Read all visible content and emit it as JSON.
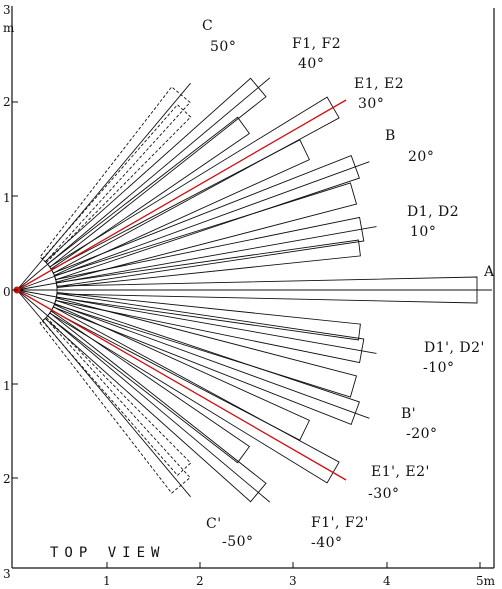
{
  "figure": {
    "title": "TOP VIEW",
    "axis_unit_x": "5m",
    "axis_unit_y": "m",
    "x_ticks": [
      "1",
      "2",
      "3",
      "4"
    ],
    "y_ticks": [
      "3",
      "2",
      "1",
      "0",
      "1",
      "2",
      "3"
    ]
  },
  "beams": [
    {
      "id": "A",
      "name": "A",
      "angle_label": "",
      "angle_deg": 0,
      "highlight": false
    },
    {
      "id": "D",
      "name": "D1, D2",
      "angle_label": "10°",
      "angle_deg": 10,
      "highlight": false
    },
    {
      "id": "B",
      "name": "B",
      "angle_label": "20°",
      "angle_deg": 20,
      "highlight": false
    },
    {
      "id": "E",
      "name": "E1, E2",
      "angle_label": "30°",
      "angle_deg": 30,
      "highlight": true
    },
    {
      "id": "F",
      "name": "F1, F2",
      "angle_label": "40°",
      "angle_deg": 40,
      "highlight": false
    },
    {
      "id": "C",
      "name": "C",
      "angle_label": "50°",
      "angle_deg": 50,
      "highlight": false
    },
    {
      "id": "Dp",
      "name": "D1', D2'",
      "angle_label": "-10°",
      "angle_deg": -10,
      "highlight": false
    },
    {
      "id": "Bp",
      "name": "B'",
      "angle_label": "-20°",
      "angle_deg": -20,
      "highlight": false
    },
    {
      "id": "Ep",
      "name": "E1', E2'",
      "angle_label": "-30°",
      "angle_deg": -30,
      "highlight": true
    },
    {
      "id": "Fp",
      "name": "F1', F2'",
      "angle_label": "-40°",
      "angle_deg": -40,
      "highlight": false
    },
    {
      "id": "Cp",
      "name": "C'",
      "angle_label": "-50°",
      "angle_deg": -50,
      "highlight": false
    }
  ],
  "colors": {
    "line": "#111111",
    "highlight": "#cc1111",
    "dashed": "#555555",
    "axis": "#111111"
  }
}
